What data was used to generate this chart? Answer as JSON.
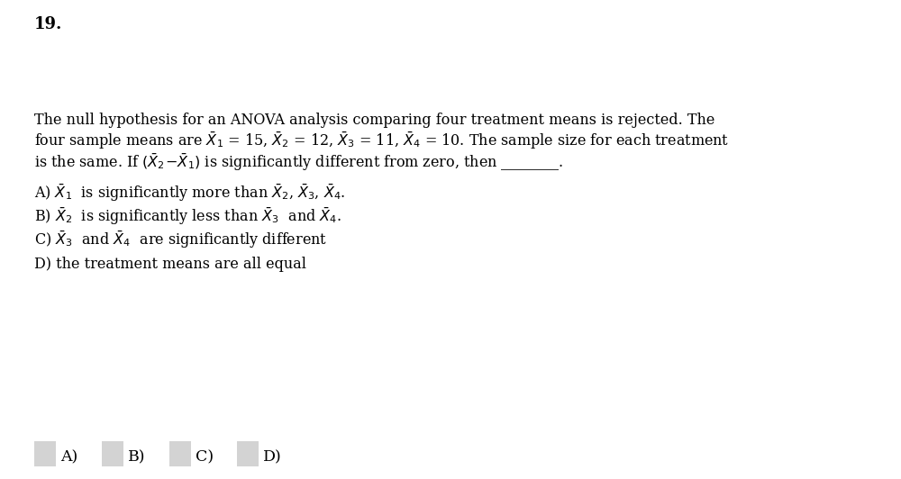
{
  "question_number": "19.",
  "background_color": "#ffffff",
  "text_color": "#000000",
  "font_size_main": 11.5,
  "font_size_number": 13,
  "checkbox_color": "#d3d3d3",
  "figsize": [
    10.0,
    5.32
  ],
  "dpi": 100,
  "line1": "The null hypothesis for an ANOVA analysis comparing four treatment means is rejected. The",
  "line3": "is the same. If",
  "line3b": "is significantly different from zero, then",
  "line3_blank": "________.",
  "optD": "D) the treatment means are all equal",
  "ans_labels": [
    "A)",
    "B)",
    "C)",
    "D)"
  ]
}
